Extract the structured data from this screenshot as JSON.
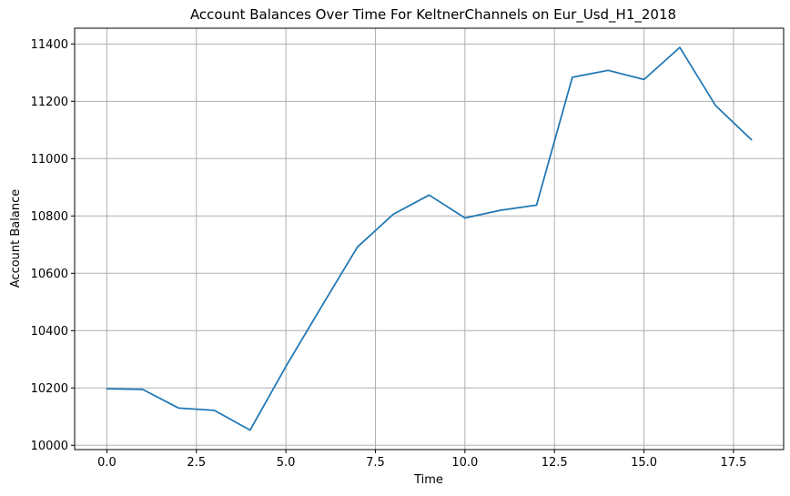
{
  "chart_data": {
    "type": "line",
    "title": "Account Balances Over Time For KeltnerChannels on Eur_Usd_H1_2018",
    "xlabel": "Time",
    "ylabel": "Account Balance",
    "xlim": [
      -0.9,
      18.9
    ],
    "ylim": [
      9985,
      11455
    ],
    "x_ticks": [
      0,
      2.5,
      5,
      7.5,
      10,
      12.5,
      15,
      17.5
    ],
    "x_tick_labels": [
      "0.0",
      "2.5",
      "5.0",
      "7.5",
      "10.0",
      "12.5",
      "15.0",
      "17.5"
    ],
    "y_ticks": [
      10000,
      10200,
      10400,
      10600,
      10800,
      11000,
      11200,
      11400
    ],
    "y_tick_labels": [
      "10000",
      "10200",
      "10400",
      "10600",
      "10800",
      "11000",
      "11200",
      "11400"
    ],
    "grid": true,
    "series": [
      {
        "color": "#1f77b4",
        "x": [
          0,
          1,
          2,
          3,
          4,
          5,
          6,
          7,
          8,
          9,
          10,
          11,
          12,
          13,
          14,
          15,
          16,
          17,
          18
        ],
        "values": [
          10197,
          10195,
          10130,
          10122,
          10053,
          10275,
          10485,
          10692,
          10806,
          10873,
          10793,
          10820,
          10838,
          11284,
          11308,
          11276,
          11388,
          11185,
          11066
        ]
      }
    ]
  }
}
